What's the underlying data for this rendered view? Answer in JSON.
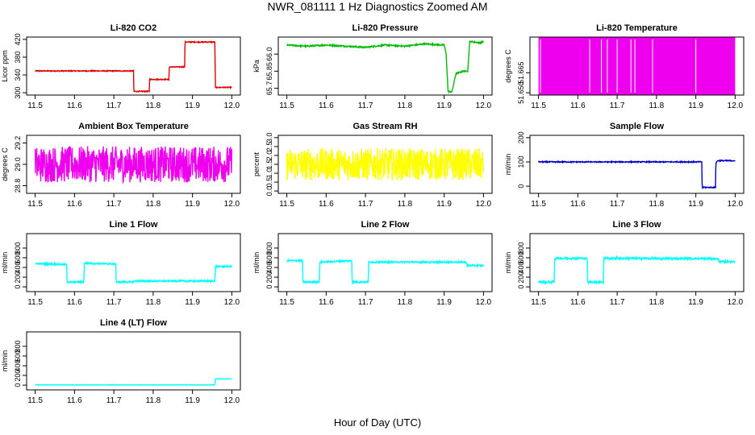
{
  "page": {
    "title": "NWR_081111  1 Hz Diagnostics Zoomed AM",
    "xlabel": "Hour of Day (UTC)"
  },
  "chart_data": [
    {
      "type": "line",
      "title": "Li-820 CO2",
      "ylabel": "Licor ppm",
      "color": "#dd0000",
      "xlim": [
        11.5,
        12.0
      ],
      "ylim": [
        300,
        420
      ],
      "xticks": [
        "11.5",
        "11.6",
        "11.7",
        "11.8",
        "11.9",
        "12.0"
      ],
      "yticks": [
        300,
        340,
        380,
        420
      ],
      "noise": 1,
      "x": [
        11.5,
        11.75,
        11.751,
        11.79,
        11.791,
        11.84,
        11.841,
        11.88,
        11.881,
        11.957,
        11.958,
        11.965,
        11.966,
        12.0
      ],
      "y": [
        349,
        349,
        303,
        303,
        330,
        330,
        358,
        358,
        414,
        414,
        312,
        312,
        312,
        312
      ]
    },
    {
      "type": "line",
      "title": "Li-820 Pressure",
      "ylabel": "kPa",
      "color": "#00bb00",
      "xlim": [
        11.5,
        12.0
      ],
      "ylim": [
        65.66,
        66.13
      ],
      "xticks": [
        "11.5",
        "11.6",
        "11.7",
        "11.8",
        "11.9",
        "12.0"
      ],
      "yticks": [
        65.7,
        65.85,
        66.0
      ],
      "ytick_labels": [
        "65.7",
        "65.85",
        "66.0"
      ],
      "noise": 0.006,
      "x": [
        11.5,
        11.55,
        11.6,
        11.65,
        11.7,
        11.75,
        11.8,
        11.85,
        11.9,
        11.905,
        11.91,
        11.92,
        11.93,
        11.95,
        11.96,
        11.965,
        11.97,
        11.99,
        12.0
      ],
      "y": [
        66.08,
        66.07,
        66.08,
        66.07,
        66.06,
        66.08,
        66.07,
        66.09,
        66.08,
        66.0,
        65.67,
        65.67,
        65.83,
        65.85,
        65.85,
        66.11,
        66.11,
        66.1,
        66.11
      ]
    },
    {
      "type": "line",
      "title": "Li-820 Temperature",
      "ylabel": "degrees C",
      "color": "#ee00ee",
      "xlim": [
        11.5,
        12.0
      ],
      "ylim": [
        51.65,
        51.69
      ],
      "xticks": [
        "11.5",
        "11.6",
        "11.7",
        "11.8",
        "11.9",
        "12.0"
      ],
      "yticks": [
        51.65,
        51.665
      ],
      "ytick_labels": [
        "51.650",
        "51.665"
      ],
      "fill_band": true,
      "x": [
        11.5,
        12.0
      ],
      "y": [
        51.65,
        51.69
      ]
    },
    {
      "type": "line",
      "title": "Ambient Box Temperature",
      "ylabel": "degrees C",
      "color": "#ee00ee",
      "xlim": [
        11.5,
        12.0
      ],
      "ylim": [
        28.75,
        29.25
      ],
      "xticks": [
        "11.5",
        "11.6",
        "11.7",
        "11.8",
        "11.9",
        "12.0"
      ],
      "yticks": [
        28.8,
        29.0,
        29.2
      ],
      "ytick_labels": [
        "28.8",
        "29.0",
        "29.2"
      ],
      "noise": 0.17,
      "x": [
        11.5,
        12.0
      ],
      "y": [
        29.0,
        29.0
      ]
    },
    {
      "type": "line",
      "title": "Gas Stream RH",
      "ylabel": "percent",
      "color": "#ffff00",
      "xlim": [
        11.5,
        12.0
      ],
      "ylim": [
        0,
        3.0
      ],
      "xticks": [
        "11.5",
        "11.6",
        "11.7",
        "11.8",
        "11.9",
        "12.0"
      ],
      "yticks": [
        0,
        0.5,
        1.0,
        1.5,
        2.0,
        2.5,
        3.0
      ],
      "ytick_labels": [
        "0.0",
        "0.5",
        "1.0",
        "1.5",
        "2.0",
        "2.5",
        "3.0"
      ],
      "noise": 0.9,
      "x": [
        11.5,
        12.0
      ],
      "y": [
        1.5,
        1.5
      ]
    },
    {
      "type": "line",
      "title": "Sample Flow",
      "ylabel": "ml/min",
      "color": "#0000cc",
      "xlim": [
        11.5,
        12.0
      ],
      "ylim": [
        -20,
        200
      ],
      "xticks": [
        "11.5",
        "11.6",
        "11.7",
        "11.8",
        "11.9",
        "12.0"
      ],
      "yticks": [
        0,
        100,
        200
      ],
      "noise": 2,
      "x": [
        11.5,
        11.9,
        11.915,
        11.916,
        11.95,
        11.951,
        11.955,
        11.96,
        12.0
      ],
      "y": [
        100,
        100,
        100,
        -5,
        -5,
        95,
        105,
        105,
        105
      ]
    },
    {
      "type": "line",
      "title": "Line 1 Flow",
      "ylabel": "ml/min",
      "color": "#00ffff",
      "xlim": [
        11.5,
        12.0
      ],
      "ylim": [
        -50,
        1050
      ],
      "xticks": [
        "11.5",
        "11.6",
        "11.7",
        "11.8",
        "11.9",
        "12.0"
      ],
      "yticks": [
        0,
        200,
        400,
        600,
        800
      ],
      "noise": 15,
      "x": [
        11.5,
        11.58,
        11.581,
        11.624,
        11.625,
        11.705,
        11.706,
        11.75,
        11.751,
        11.957,
        11.958,
        12.0
      ],
      "y": [
        480,
        460,
        100,
        100,
        490,
        470,
        100,
        100,
        120,
        120,
        420,
        420
      ]
    },
    {
      "type": "line",
      "title": "Line 2 Flow",
      "ylabel": "ml/min",
      "color": "#00ffff",
      "xlim": [
        11.5,
        12.0
      ],
      "ylim": [
        -50,
        1050
      ],
      "xticks": [
        "11.5",
        "11.6",
        "11.7",
        "11.8",
        "11.9",
        "12.0"
      ],
      "yticks": [
        0,
        200,
        400,
        600,
        800
      ],
      "noise": 15,
      "x": [
        11.5,
        11.54,
        11.541,
        11.583,
        11.584,
        11.665,
        11.666,
        11.707,
        11.708,
        11.957,
        11.958,
        12.0
      ],
      "y": [
        540,
        540,
        100,
        100,
        510,
        540,
        100,
        100,
        510,
        510,
        440,
        440
      ]
    },
    {
      "type": "line",
      "title": "Line 3 Flow",
      "ylabel": "ml/min",
      "color": "#00ffff",
      "xlim": [
        11.5,
        12.0
      ],
      "ylim": [
        -50,
        1050
      ],
      "xticks": [
        "11.5",
        "11.6",
        "11.7",
        "11.8",
        "11.9",
        "12.0"
      ],
      "yticks": [
        0,
        200,
        400,
        600,
        800
      ],
      "noise": 20,
      "x": [
        11.5,
        11.54,
        11.541,
        11.624,
        11.625,
        11.665,
        11.666,
        11.957,
        11.958,
        12.0
      ],
      "y": [
        100,
        100,
        590,
        590,
        100,
        100,
        590,
        580,
        520,
        520
      ]
    },
    {
      "type": "line",
      "title": "Line 4 (LT) Flow",
      "ylabel": "ml/min",
      "color": "#00ffff",
      "xlim": [
        11.5,
        12.0
      ],
      "ylim": [
        -50,
        1050
      ],
      "xticks": [
        "11.5",
        "11.6",
        "11.7",
        "11.8",
        "11.9",
        "12.0"
      ],
      "yticks": [
        0,
        200,
        400,
        600,
        800
      ],
      "noise": 3,
      "x": [
        11.5,
        11.957,
        11.958,
        12.0
      ],
      "y": [
        5,
        5,
        130,
        130
      ]
    }
  ]
}
